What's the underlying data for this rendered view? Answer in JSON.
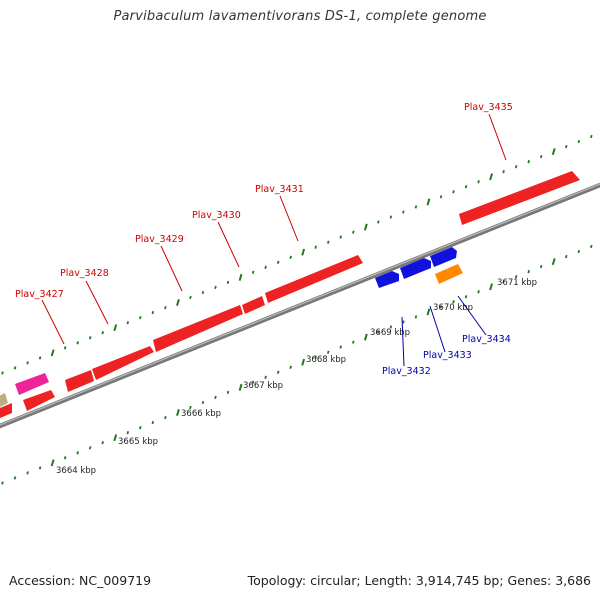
{
  "title": "Parvibaculum lavamentivorans DS-1, complete genome",
  "footer": {
    "accession": "Accession: NC_009719",
    "summary": "Topology: circular; Length: 3,914,745 bp; Genes: 3,686"
  },
  "colors": {
    "forward_gene": "#ee1111",
    "reverse_gene": "#1111dd",
    "rna_gene": "#ff8800",
    "pink_gene": "#ee2299",
    "olive_gene": "#b8b080",
    "forward_label": "#cc0000",
    "reverse_label": "#0000aa",
    "backbone": "#888888",
    "tick": "#1f7a1f"
  },
  "scale_labels": [
    "3664 kbp",
    "3665 kbp",
    "3666 kbp",
    "3667 kbp",
    "3668 kbp",
    "3669 kbp",
    "3670 kbp",
    "3671 kbp"
  ],
  "forward_labels": [
    "Plav_3427",
    "Plav_3428",
    "Plav_3429",
    "Plav_3430",
    "Plav_3431",
    "Plav_3435"
  ],
  "reverse_labels": [
    "Plav_3432",
    "Plav_3433",
    "Plav_3434"
  ]
}
